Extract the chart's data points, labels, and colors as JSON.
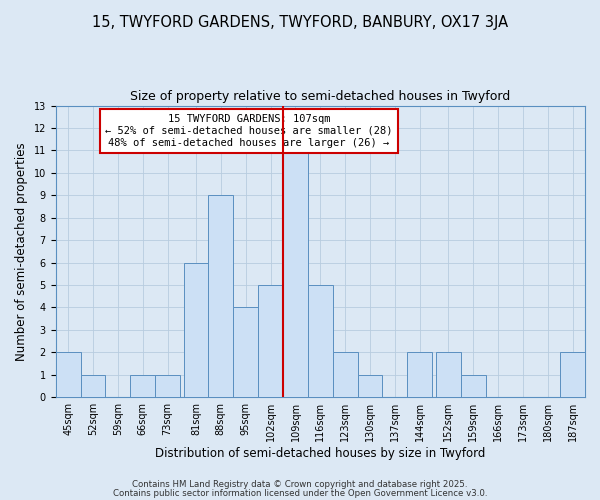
{
  "title": "15, TWYFORD GARDENS, TWYFORD, BANBURY, OX17 3JA",
  "subtitle": "Size of property relative to semi-detached houses in Twyford",
  "xlabel": "Distribution of semi-detached houses by size in Twyford",
  "ylabel": "Number of semi-detached properties",
  "bin_labels": [
    "45sqm",
    "52sqm",
    "59sqm",
    "66sqm",
    "73sqm",
    "81sqm",
    "88sqm",
    "95sqm",
    "102sqm",
    "109sqm",
    "116sqm",
    "123sqm",
    "130sqm",
    "137sqm",
    "144sqm",
    "152sqm",
    "159sqm",
    "166sqm",
    "173sqm",
    "180sqm",
    "187sqm"
  ],
  "bin_starts": [
    45,
    52,
    59,
    66,
    73,
    81,
    88,
    95,
    102,
    109,
    116,
    123,
    130,
    137,
    144,
    152,
    159,
    166,
    173,
    180,
    187
  ],
  "bin_width": 7,
  "counts": [
    2,
    1,
    0,
    1,
    1,
    6,
    9,
    4,
    5,
    11,
    5,
    2,
    1,
    0,
    2,
    2,
    1,
    0,
    0,
    0,
    2
  ],
  "bar_facecolor": "#cce0f5",
  "bar_edgecolor": "#5a8fc0",
  "marker_line_x": 109,
  "marker_line_color": "#cc0000",
  "annotation_text": "15 TWYFORD GARDENS: 107sqm\n← 52% of semi-detached houses are smaller (28)\n48% of semi-detached houses are larger (26) →",
  "annotation_box_edgecolor": "#cc0000",
  "annotation_box_facecolor": "#ffffff",
  "footer1": "Contains HM Land Registry data © Crown copyright and database right 2025.",
  "footer2": "Contains public sector information licensed under the Open Government Licence v3.0.",
  "ylim": [
    0,
    13
  ],
  "yticks": [
    0,
    1,
    2,
    3,
    4,
    5,
    6,
    7,
    8,
    9,
    10,
    11,
    12,
    13
  ],
  "xlim_left": 45,
  "xlim_right": 194,
  "grid_color": "#b8ccdf",
  "bg_color": "#dce8f4",
  "title_fontsize": 10.5,
  "subtitle_fontsize": 9,
  "axis_label_fontsize": 8.5,
  "tick_fontsize": 7,
  "annotation_fontsize": 7.5,
  "footer_fontsize": 6.2
}
